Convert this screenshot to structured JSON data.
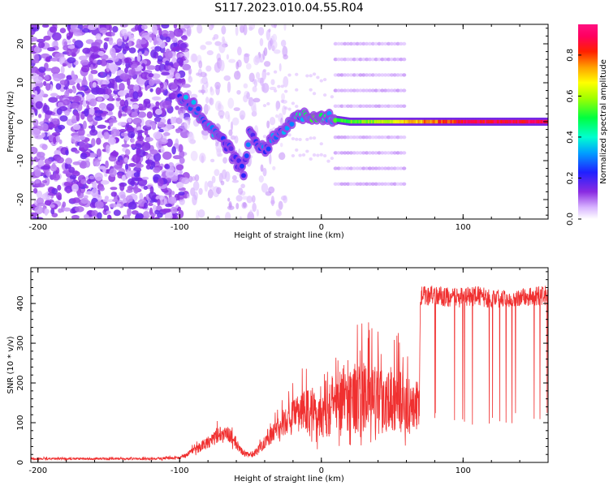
{
  "figure": {
    "title": "S117.2023.010.04.55.R04"
  },
  "chart_data": [
    {
      "type": "heatmap",
      "xlabel": "Height of straight line (km)",
      "ylabel": "Frequency (Hz)",
      "xlim": [
        -205,
        160
      ],
      "ylim": [
        -25,
        25
      ],
      "x_ticks": [
        -200,
        -100,
        0,
        100
      ],
      "y_ticks": [
        -20,
        -10,
        0,
        10,
        20
      ],
      "colorbar": {
        "label": "Normalized spectral amplitude",
        "range": [
          0,
          0.95
        ],
        "ticks": [
          "0.0",
          "0.2",
          "0.4",
          "0.6",
          "0.8"
        ],
        "tick_values": [
          0.0,
          0.2,
          0.4,
          0.6,
          0.8
        ],
        "colormap": "white-purple-blue-cyan-green-yellow-orange-red-magenta"
      },
      "ridge": {
        "height_km": [
          -100,
          -90,
          -80,
          -75,
          -70,
          -65,
          -60,
          -55,
          -50,
          -45,
          -40,
          -35,
          -30,
          -25,
          -20,
          -15,
          -10,
          -5,
          0,
          5,
          10,
          20,
          40,
          60,
          80,
          100,
          120,
          140,
          160
        ],
        "frequency_hz": [
          6,
          4,
          -1,
          -3,
          -5,
          -7,
          -10,
          -13,
          -2,
          -5,
          -8,
          -4,
          -3,
          -1,
          0,
          1.5,
          2,
          1,
          1.5,
          1,
          0.5,
          0,
          0,
          0,
          0,
          0,
          0,
          0,
          0
        ],
        "amplitude": [
          0.3,
          0.35,
          0.35,
          0.35,
          0.3,
          0.28,
          0.25,
          0.25,
          0.3,
          0.3,
          0.3,
          0.32,
          0.35,
          0.38,
          0.4,
          0.45,
          0.5,
          0.5,
          0.5,
          0.45,
          0.5,
          0.55,
          0.6,
          0.7,
          0.8,
          0.88,
          0.9,
          0.9,
          0.9
        ]
      },
      "harmonic_bands_hz": [
        -16,
        -12,
        -8,
        -4,
        4,
        8,
        12,
        16,
        20
      ],
      "harmonic_band_range_km": [
        10,
        60
      ]
    },
    {
      "type": "line",
      "xlabel": "Height of straight line (km)",
      "ylabel": "SNR (10 * v/v)",
      "xlim": [
        -205,
        160
      ],
      "ylim": [
        0,
        490
      ],
      "x_ticks": [
        -200,
        -100,
        0,
        100
      ],
      "y_ticks": [
        0,
        100,
        200,
        300,
        400
      ],
      "color": "#f03030",
      "series": [
        {
          "x": [
            -205,
            -150,
            -120,
            -100,
            -90,
            -85,
            -80,
            -75,
            -70,
            -65,
            -60,
            -55,
            -50,
            -45,
            -40,
            -35,
            -30,
            -25,
            -20,
            -15,
            -10,
            -5,
            0,
            5,
            10,
            15,
            20,
            25,
            30,
            35,
            40,
            45,
            50,
            55,
            60,
            65,
            69,
            70,
            80,
            90,
            100,
            110,
            120,
            121,
            130,
            140,
            150,
            160
          ],
          "y": [
            8,
            8,
            8,
            10,
            25,
            35,
            45,
            55,
            70,
            60,
            40,
            20,
            15,
            25,
            45,
            60,
            75,
            90,
            100,
            105,
            110,
            100,
            100,
            110,
            120,
            120,
            125,
            130,
            125,
            130,
            120,
            125,
            130,
            125,
            110,
            115,
            115,
            420,
            420,
            415,
            415,
            420,
            410,
            415,
            412,
            415,
            418,
            420
          ],
          "noise_amplitude": [
            6,
            6,
            6,
            8,
            20,
            30,
            35,
            40,
            45,
            45,
            30,
            15,
            15,
            25,
            40,
            55,
            60,
            80,
            90,
            110,
            130,
            140,
            150,
            170,
            190,
            200,
            200,
            210,
            200,
            200,
            190,
            190,
            190,
            180,
            160,
            150,
            150,
            50,
            50,
            50,
            50,
            50,
            50,
            50,
            45,
            45,
            50,
            50
          ]
        }
      ]
    }
  ]
}
